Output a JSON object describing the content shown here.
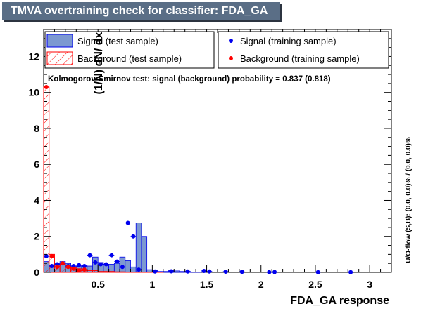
{
  "title": "TMVA overtraining check for classifier: FDA_GA",
  "colors": {
    "signal_fill": "#7d99d1",
    "signal_line": "#0000ee",
    "background_line": "#ff0000",
    "title_bg": "#5a6e86"
  },
  "legend": {
    "signal_test": "Signal (test sample)",
    "background_test": "Background (test sample)",
    "signal_train": "Signal (training sample)",
    "background_train": "Background (training sample)"
  },
  "ks_text": "Kolmogorov-Smirnov test: signal (background) probability = 0.837 (0.818)",
  "overflow_text": "U/O-flow (S,B): (0.0, 0.0)% / (0.0, 0.0)%",
  "chart_data": {
    "type": "histogram",
    "xlabel": "FDA_GA response",
    "ylabel": "(1/N) dN/ dx",
    "xlim": [
      0.0,
      3.2
    ],
    "ylim": [
      0,
      13.5
    ],
    "xticks": [
      0.5,
      1,
      1.5,
      2,
      2.5,
      3
    ],
    "yticks": [
      0,
      2,
      4,
      6,
      8,
      10,
      12
    ],
    "bin_width": 0.05,
    "bin_edges_start": 0.0,
    "signal_test": [
      0.6,
      0.4,
      0.5,
      0.6,
      0.5,
      0.35,
      0.35,
      0.4,
      0.35,
      0.85,
      0.55,
      0.45,
      0.45,
      0.5,
      0.85,
      0.65,
      0.3,
      2.75,
      2.0,
      0.15,
      0.1,
      0.05,
      0.05,
      0.1,
      0.08,
      0.05,
      0.05,
      0.02,
      0.02,
      0,
      0,
      0,
      0,
      0,
      0,
      0,
      0,
      0,
      0,
      0,
      0,
      0,
      0,
      0,
      0,
      0,
      0,
      0,
      0,
      0,
      0,
      0,
      0,
      0,
      0,
      0,
      0,
      0,
      0,
      0,
      0,
      0,
      0,
      0
    ],
    "background_test": [
      10.3,
      1.0,
      0.35,
      0.45,
      0.35,
      0.25,
      0.2,
      0.1,
      0.1,
      0.1,
      0.05,
      0.05,
      0.05,
      0.03,
      0.03,
      0.02,
      0.02,
      0.02,
      0.02,
      0.02,
      0.01,
      0.01,
      0,
      0,
      0,
      0,
      0,
      0,
      0,
      0,
      0,
      0,
      0,
      0,
      0,
      0,
      0,
      0,
      0,
      0,
      0,
      0,
      0,
      0,
      0,
      0,
      0,
      0,
      0,
      0,
      0,
      0,
      0,
      0,
      0,
      0,
      0,
      0,
      0,
      0,
      0,
      0,
      0,
      0,
      0
    ],
    "signal_train": [
      [
        0.025,
        0.9
      ],
      [
        0.075,
        0.35
      ],
      [
        0.125,
        0.45
      ],
      [
        0.175,
        0.5
      ],
      [
        0.225,
        0.35
      ],
      [
        0.275,
        0.35
      ],
      [
        0.325,
        0.4
      ],
      [
        0.375,
        0.35
      ],
      [
        0.425,
        0.95
      ],
      [
        0.475,
        0.55
      ],
      [
        0.525,
        0.45
      ],
      [
        0.575,
        0.45
      ],
      [
        0.625,
        0.95
      ],
      [
        0.675,
        0.6
      ],
      [
        0.725,
        0.3
      ],
      [
        0.775,
        2.75
      ],
      [
        0.825,
        2.0
      ],
      [
        0.875,
        0.15
      ],
      [
        1.025,
        0.05
      ],
      [
        1.175,
        0.06
      ],
      [
        1.325,
        0.05
      ],
      [
        1.475,
        0.08
      ],
      [
        1.525,
        0.05
      ],
      [
        1.675,
        0.04
      ],
      [
        1.825,
        0.03
      ],
      [
        2.075,
        0.01
      ],
      [
        2.125,
        0.02
      ],
      [
        2.525,
        0.01
      ],
      [
        2.825,
        0.01
      ]
    ],
    "background_train": [
      [
        0.025,
        10.3
      ],
      [
        0.075,
        0.9
      ],
      [
        0.125,
        0.3
      ],
      [
        0.175,
        0.5
      ],
      [
        0.225,
        0.3
      ],
      [
        0.275,
        0.2
      ],
      [
        0.325,
        0.1
      ],
      [
        0.375,
        0.15
      ]
    ]
  }
}
